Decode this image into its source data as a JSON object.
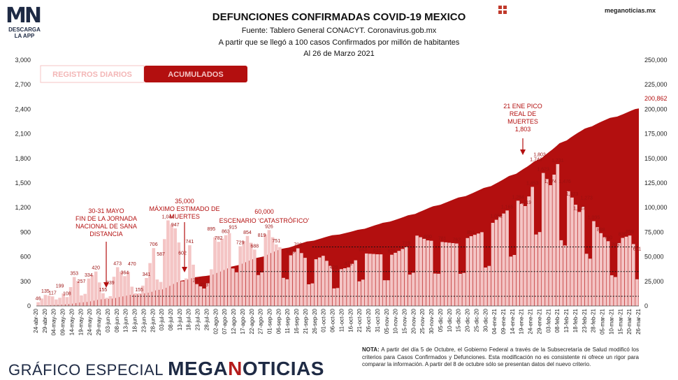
{
  "logo": {
    "mark": "MN",
    "line1": "DESCARGA",
    "line2": "LA APP"
  },
  "header": {
    "title": "DEFUNCIONES CONFIRMADAS COVID-19 MEXICO",
    "subtitle1": "Fuente: Tablero General CONACYT. Coronavirus.gob.mx",
    "subtitle2": "A partir que se llegó a 100 casos Confirmados por millón de habitantes",
    "subtitle3": "Al 26 de Marzo 2021"
  },
  "site": "meganoticias.mx",
  "brand": {
    "left": "GRÁFICO ESPECIAL",
    "name_a": "MEGA",
    "name_b": "N",
    "name_c": "OTICIAS"
  },
  "note": {
    "bold": "NOTA:",
    "text": " A partir del día 5 de Octubre, el Gobierno Federal a través de la Subsecretaría de Salud modificó los criterios para Casos Confirmados y Defunciones. Esta modificación no es consistente ni ofrece un rigor para comparar la información. A partir del 8 de octubre sólo se presentan datos del nuevo criterio."
  },
  "colors": {
    "daily": "#f4c5c5",
    "cumulative": "#b30f0f",
    "annotation": "#b30f0f",
    "dark": "#1e2a44"
  },
  "chart_data": {
    "type": "bar",
    "legend": {
      "daily": "REGISTROS DIARIOS",
      "cumulative": "ACUMULADOS"
    },
    "ylim_left": [
      0,
      3000
    ],
    "ylim_right": [
      0,
      250000
    ],
    "yticks_left": [
      "0",
      "300",
      "600",
      "900",
      "1,200",
      "1,500",
      "1,800",
      "2,100",
      "2,400",
      "2,700",
      "3,000"
    ],
    "yticks_right": [
      "0",
      "25,000",
      "50,000",
      "75,000",
      "100,000",
      "125,000",
      "150,000",
      "175,000",
      "200,000",
      "225,000",
      "250,000"
    ],
    "xticks": [
      "24-abr-20",
      "29-abr-20",
      "04-may-20",
      "09-may-20",
      "14-may-20",
      "19-may-20",
      "24-may-20",
      "29-may-20",
      "03-jun-20",
      "08-jun-20",
      "13-jun-20",
      "18-jun-20",
      "23-jun-20",
      "28-jun-20",
      "03-jul-20",
      "08-jul-20",
      "13-jul-20",
      "18-jul-20",
      "23-jul-20",
      "28-jul-20",
      "02-ago-20",
      "07-ago-20",
      "12-ago-20",
      "17-ago-20",
      "22-ago-20",
      "27-ago-20",
      "01-sep-20",
      "06-sep-20",
      "11-sep-20",
      "16-sep-20",
      "21-sep-20",
      "26-sep-20",
      "01-oct-20",
      "06-oct-20",
      "11-oct-20",
      "16-oct-20",
      "21-oct-20",
      "26-oct-20",
      "31-oct-20",
      "05-nov-20",
      "10-nov-20",
      "15-nov-20",
      "20-nov-20",
      "25-nov-20",
      "30-nov-20",
      "05-dic-20",
      "10-dic-20",
      "15-dic-20",
      "20-dic-20",
      "25-dic-20",
      "30-dic-20",
      "04-ene-21",
      "09-ene-21",
      "14-ene-21",
      "19-ene-21",
      "24-ene-21",
      "29-ene-21",
      "03-feb-21",
      "08-feb-21",
      "13-feb-21",
      "18-feb-21",
      "23-feb-21",
      "28-feb-21",
      "05-mar-21",
      "10-mar-21",
      "15-mar-21",
      "20-mar-21",
      "26-mar-21"
    ],
    "daily_anchors": [
      [
        0,
        46
      ],
      [
        2,
        135
      ],
      [
        4,
        117
      ],
      [
        6,
        199
      ],
      [
        8,
        108
      ],
      [
        10,
        353
      ],
      [
        12,
        257
      ],
      [
        14,
        334
      ],
      [
        16,
        420
      ],
      [
        18,
        155
      ],
      [
        20,
        239
      ],
      [
        22,
        473
      ],
      [
        24,
        364
      ],
      [
        26,
        470
      ],
      [
        28,
        155
      ],
      [
        30,
        341
      ],
      [
        32,
        706
      ],
      [
        34,
        587
      ],
      [
        36,
        1044
      ],
      [
        38,
        947
      ],
      [
        40,
        602
      ],
      [
        42,
        741
      ],
      [
        44,
        267
      ],
      [
        46,
        213
      ],
      [
        48,
        895
      ],
      [
        50,
        782
      ],
      [
        52,
        863
      ],
      [
        54,
        915
      ],
      [
        56,
        729
      ],
      [
        58,
        854
      ],
      [
        60,
        688
      ],
      [
        62,
        819
      ],
      [
        64,
        926
      ],
      [
        66,
        751
      ],
      [
        70,
        618
      ],
      [
        72,
        703
      ],
      [
        75,
        529
      ],
      [
        79,
        612
      ],
      [
        82,
        428
      ],
      [
        86,
        471
      ],
      [
        90,
        643
      ],
      [
        94,
        631
      ],
      [
        98,
        625
      ],
      [
        102,
        719
      ],
      [
        105,
        858
      ],
      [
        108,
        800
      ],
      [
        112,
        781
      ],
      [
        116,
        762
      ],
      [
        120,
        851
      ],
      [
        123,
        900
      ],
      [
        127,
        1052
      ],
      [
        130,
        1165
      ],
      [
        133,
        1284
      ],
      [
        135,
        1219
      ],
      [
        137,
        1453
      ],
      [
        138,
        1743
      ],
      [
        139,
        1803
      ],
      [
        140,
        1623
      ],
      [
        142,
        1474
      ],
      [
        144,
        1731
      ],
      [
        146,
        1476
      ],
      [
        148,
        1323
      ],
      [
        150,
        1147
      ],
      [
        152,
        1273
      ],
      [
        154,
        1035
      ],
      [
        156,
        888
      ],
      [
        158,
        790
      ],
      [
        160,
        705
      ],
      [
        162,
        830
      ],
      [
        164,
        859
      ],
      [
        166,
        651
      ]
    ],
    "cumulative_total": "200,862",
    "days": 167,
    "annotations": [
      {
        "id": "may30",
        "lines": [
          "30-31 MAYO",
          "FIN DE LA JORNADA",
          "NACIONAL DE SANA",
          "DISTANCIA"
        ]
      },
      {
        "id": "jul",
        "lines": [
          "35,000",
          "MÁXIMO ESTIMADO DE",
          "MUERTES"
        ]
      },
      {
        "id": "aug",
        "lines": [
          "60,000",
          "ESCENARIO ‘CATASTRÓFICO’"
        ]
      },
      {
        "id": "jan21",
        "lines": [
          "21 ENE PICO",
          "REAL DE",
          "MUERTES",
          "1,803"
        ]
      }
    ]
  }
}
